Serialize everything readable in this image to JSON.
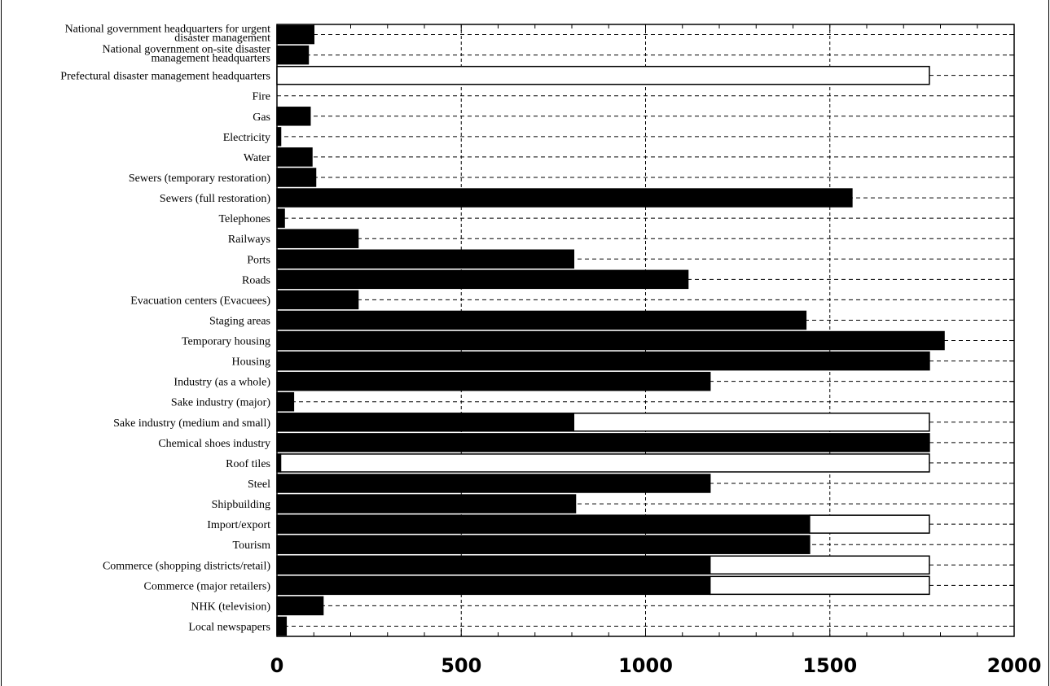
{
  "chart_data": {
    "type": "bar",
    "orientation": "horizontal",
    "stacked": true,
    "title": "",
    "xlabel": "",
    "ylabel": "",
    "xlim": [
      0,
      2000
    ],
    "xticks": [
      0,
      500,
      1000,
      1500,
      2000
    ],
    "grid": true,
    "legend": "none",
    "categories": [
      "National government headquarters for urgent|disaster management",
      "National government on-site disaster|management headquarters",
      "Prefectural disaster management headquarters",
      "Fire",
      "Gas",
      "Electricity",
      "Water",
      "Sewers (temporary restoration)",
      "Sewers (full restoration)",
      "Telephones",
      "Railways",
      "Ports",
      "Roads",
      "Evacuation  centers  (Evacuees)",
      "Staging areas",
      "Temporary housing",
      "Housing",
      "Industry (as a whole)",
      "Sake industry (major)",
      "Sake industry (medium and small)",
      "Chemical  shoes  industry",
      "Roof tiles",
      "Steel",
      "Shipbuilding",
      "Import/export",
      "Tourism",
      "Commerce (shopping districts/retail)",
      "Commerce (major retailers)",
      "NHK (television)",
      "Local newspapers"
    ],
    "series": [
      {
        "color": "#000000",
        "values": [
          100,
          85,
          0,
          0,
          90,
          10,
          95,
          105,
          1560,
          20,
          220,
          805,
          1115,
          220,
          1435,
          1810,
          1770,
          1175,
          45,
          805,
          1770,
          10,
          1175,
          810,
          1445,
          1445,
          1175,
          1175,
          125,
          25
        ]
      },
      {
        "color": "#ffffff",
        "values": [
          0,
          0,
          1770,
          0,
          0,
          0,
          0,
          0,
          0,
          0,
          0,
          0,
          0,
          0,
          0,
          0,
          0,
          0,
          0,
          965,
          0,
          1760,
          0,
          0,
          325,
          0,
          595,
          595,
          0,
          0
        ]
      }
    ]
  }
}
